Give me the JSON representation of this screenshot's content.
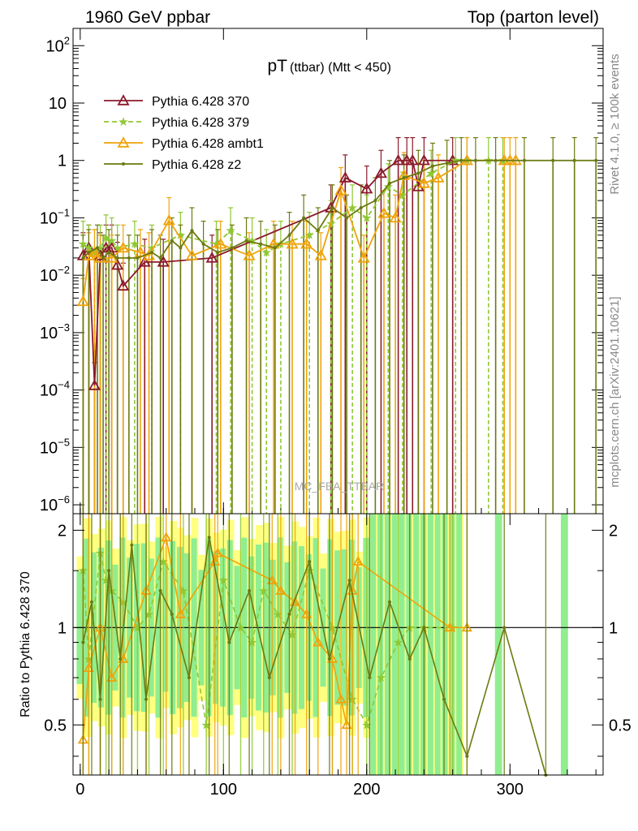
{
  "header": {
    "left_title": "1960 GeV ppbar",
    "right_title": "Top (parton level)"
  },
  "side_labels": {
    "rivet": "Rivet 4.1.0, ≥ 100k events",
    "mcplots": "mcplots.cern.ch [arXiv:2401.10621]"
  },
  "watermark": "MC_FBA_TTBAR",
  "colors": {
    "p370": "#8b1a2b",
    "p379": "#8fc833",
    "ambt1": "#f0a30a",
    "z2": "#6b7a10",
    "band_yellow": "#ffff80",
    "band_green": "#90ee90"
  },
  "chart_data": [
    {
      "type": "line",
      "title_main": "pT",
      "title_sub": "(ttbar) (Mtt < 450)",
      "ylabel": "",
      "yscale": "log",
      "xlim": [
        -5,
        365
      ],
      "ylim": [
        7e-07,
        200
      ],
      "y_ticks": [
        {
          "value": 1e-06,
          "base": "10",
          "exp": "−6"
        },
        {
          "value": 1e-05,
          "base": "10",
          "exp": "−5"
        },
        {
          "value": 0.0001,
          "base": "10",
          "exp": "−4"
        },
        {
          "value": 0.001,
          "base": "10",
          "exp": "−3"
        },
        {
          "value": 0.01,
          "base": "10",
          "exp": "−2"
        },
        {
          "value": 0.1,
          "base": "10",
          "exp": "−1"
        },
        {
          "value": 1,
          "base": "1",
          "exp": ""
        },
        {
          "value": 10,
          "base": "10",
          "exp": ""
        },
        {
          "value": 100,
          "base": "10",
          "exp": "2"
        }
      ],
      "series": [
        {
          "name": "Pythia 6.428 370",
          "key": "p370",
          "marker": "triangle-open",
          "dash": "solid",
          "x": [
            2,
            6,
            10,
            14,
            18,
            22,
            26,
            30,
            45,
            58,
            92,
            175,
            185,
            200,
            210,
            222,
            228,
            232,
            236,
            240,
            260
          ],
          "y": [
            0.022,
            0.03,
            0.00012,
            0.022,
            0.03,
            0.03,
            0.015,
            0.0065,
            0.017,
            0.017,
            0.02,
            0.15,
            0.5,
            0.32,
            0.6,
            1.0,
            1.0,
            1.0,
            0.35,
            1.0,
            1.0
          ]
        },
        {
          "name": "Pythia 6.428 379",
          "key": "p379",
          "marker": "star",
          "dash": "dashed",
          "x": [
            2,
            6,
            10,
            14,
            18,
            22,
            26,
            38,
            50,
            70,
            95,
            105,
            120,
            130,
            140,
            160,
            175,
            190,
            200,
            215,
            225,
            245,
            262,
            270,
            285,
            295
          ],
          "y": [
            0.035,
            0.03,
            0.025,
            0.03,
            0.045,
            0.04,
            0.03,
            0.035,
            0.03,
            0.05,
            0.035,
            0.06,
            0.04,
            0.025,
            0.035,
            0.05,
            0.08,
            0.15,
            0.1,
            0.35,
            0.25,
            0.6,
            1.0,
            1.0,
            1.0,
            1.0
          ]
        },
        {
          "name": "Pythia 6.428 ambt1",
          "key": "ambt1",
          "marker": "triangle-open",
          "dash": "solid",
          "x": [
            2,
            6,
            10,
            14,
            22,
            30,
            42,
            48,
            62,
            78,
            98,
            118,
            135,
            148,
            158,
            168,
            182,
            198,
            212,
            220,
            226,
            240,
            250,
            270,
            296,
            300,
            304
          ],
          "y": [
            0.0035,
            0.022,
            0.025,
            0.02,
            0.02,
            0.03,
            0.025,
            0.022,
            0.09,
            0.022,
            0.035,
            0.022,
            0.035,
            0.035,
            0.035,
            0.022,
            0.3,
            0.02,
            0.12,
            0.1,
            0.55,
            0.4,
            0.5,
            1.0,
            1.0,
            1.0,
            1.0
          ]
        },
        {
          "name": "Pythia 6.428 z2",
          "key": "z2",
          "marker": "dot",
          "dash": "solid",
          "x": [
            2,
            6,
            12,
            16,
            20,
            26,
            34,
            40,
            50,
            56,
            64,
            70,
            78,
            86,
            96,
            106,
            116,
            126,
            136,
            146,
            156,
            166,
            176,
            186,
            196,
            206,
            216,
            226,
            236,
            246,
            256,
            266,
            276,
            290,
            310,
            330,
            345,
            360
          ],
          "y": [
            0.02,
            0.025,
            0.03,
            0.02,
            0.025,
            0.02,
            0.02,
            0.02,
            0.025,
            0.02,
            0.04,
            0.03,
            0.06,
            0.035,
            0.025,
            0.03,
            0.04,
            0.035,
            0.03,
            0.05,
            0.1,
            0.06,
            0.15,
            0.1,
            0.15,
            0.2,
            0.4,
            0.5,
            0.6,
            0.8,
            0.9,
            1.0,
            1.0,
            1.0,
            1.0,
            1.0,
            1.0,
            1.0
          ]
        }
      ]
    },
    {
      "type": "line",
      "ylabel": "Ratio to Pythia 6.428 370",
      "xlim": [
        -5,
        365
      ],
      "ylim": [
        0.35,
        2.25
      ],
      "ratio_scale": "log",
      "y_ticks_left": [
        "0.5",
        "1",
        "2"
      ],
      "x_ticks": [
        "0",
        "100",
        "200",
        "300"
      ],
      "x_tick_values": [
        0,
        100,
        200,
        300
      ],
      "reference_line": 1,
      "series": [
        {
          "name": "Pythia 6.428 379",
          "key": "p379",
          "x": [
            2,
            6,
            14,
            18,
            22,
            30,
            40,
            48,
            58,
            72,
            88,
            100,
            112,
            120,
            128,
            138,
            148,
            160,
            176,
            190,
            200,
            210,
            222,
            230,
            240,
            260
          ],
          "y": [
            1.5,
            0.8,
            1.7,
            1.4,
            1.3,
            1.2,
            1.0,
            1.1,
            1.6,
            1.3,
            0.5,
            1.4,
            1.0,
            0.9,
            1.3,
            1.1,
            0.95,
            1.5,
            1.0,
            0.6,
            0.5,
            0.7,
            0.9,
            1.0,
            1.0,
            1.0
          ]
        },
        {
          "name": "Pythia 6.428 ambt1",
          "key": "ambt1",
          "x": [
            2,
            6,
            14,
            22,
            30,
            46,
            60,
            70,
            94,
            96,
            134,
            140,
            150,
            158,
            166,
            176,
            182,
            186,
            190,
            194,
            258,
            270
          ],
          "y": [
            0.45,
            0.75,
            1.0,
            0.7,
            0.8,
            1.3,
            1.9,
            1.1,
            1.6,
            1.7,
            1.4,
            1.3,
            1.2,
            1.1,
            0.9,
            0.8,
            0.6,
            0.5,
            1.3,
            1.6,
            1.0,
            1.0
          ]
        },
        {
          "name": "Pythia 6.428 z2",
          "key": "z2",
          "x": [
            2,
            8,
            14,
            20,
            28,
            36,
            46,
            56,
            64,
            76,
            90,
            104,
            118,
            132,
            146,
            160,
            174,
            188,
            202,
            216,
            230,
            240,
            254,
            270,
            296,
            325
          ],
          "y": [
            0.9,
            1.2,
            0.6,
            1.5,
            0.8,
            1.8,
            0.6,
            1.3,
            1.1,
            0.7,
            1.9,
            0.9,
            1.3,
            0.7,
            1.1,
            1.6,
            0.8,
            1.4,
            0.7,
            1.2,
            0.8,
            1.0,
            0.6,
            0.4,
            1.0,
            0.35
          ]
        }
      ]
    }
  ]
}
